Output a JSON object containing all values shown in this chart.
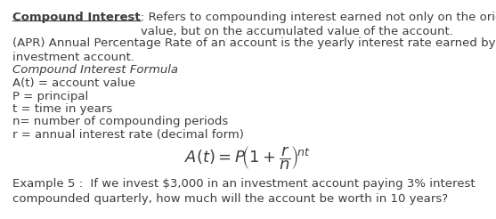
{
  "bg_color": "#ffffff",
  "text_color": "#3d3d3d",
  "line1_bold": "Compound Interest",
  "line1_rest": ": Refers to compounding interest earned not only on the original\nvalue, but on the accumulated value of the account.",
  "line2": "(APR) Annual Percentage Rate of an account is the yearly interest rate earned by an\ninvestment account.",
  "line3_italic": "Compound Interest Formula",
  "line4": "A(t) = account value",
  "line5": "P = principal",
  "line6": "t = time in years",
  "line7": "n= number of compounding periods",
  "line8": "r = annual interest rate (decimal form)",
  "example": "Example 5 :  If we invest $3,000 in an investment account paying 3% interest\ncompounded quarterly, how much will the account be worth in 10 years?",
  "font_size_main": 9.5,
  "font_size_formula": 13
}
